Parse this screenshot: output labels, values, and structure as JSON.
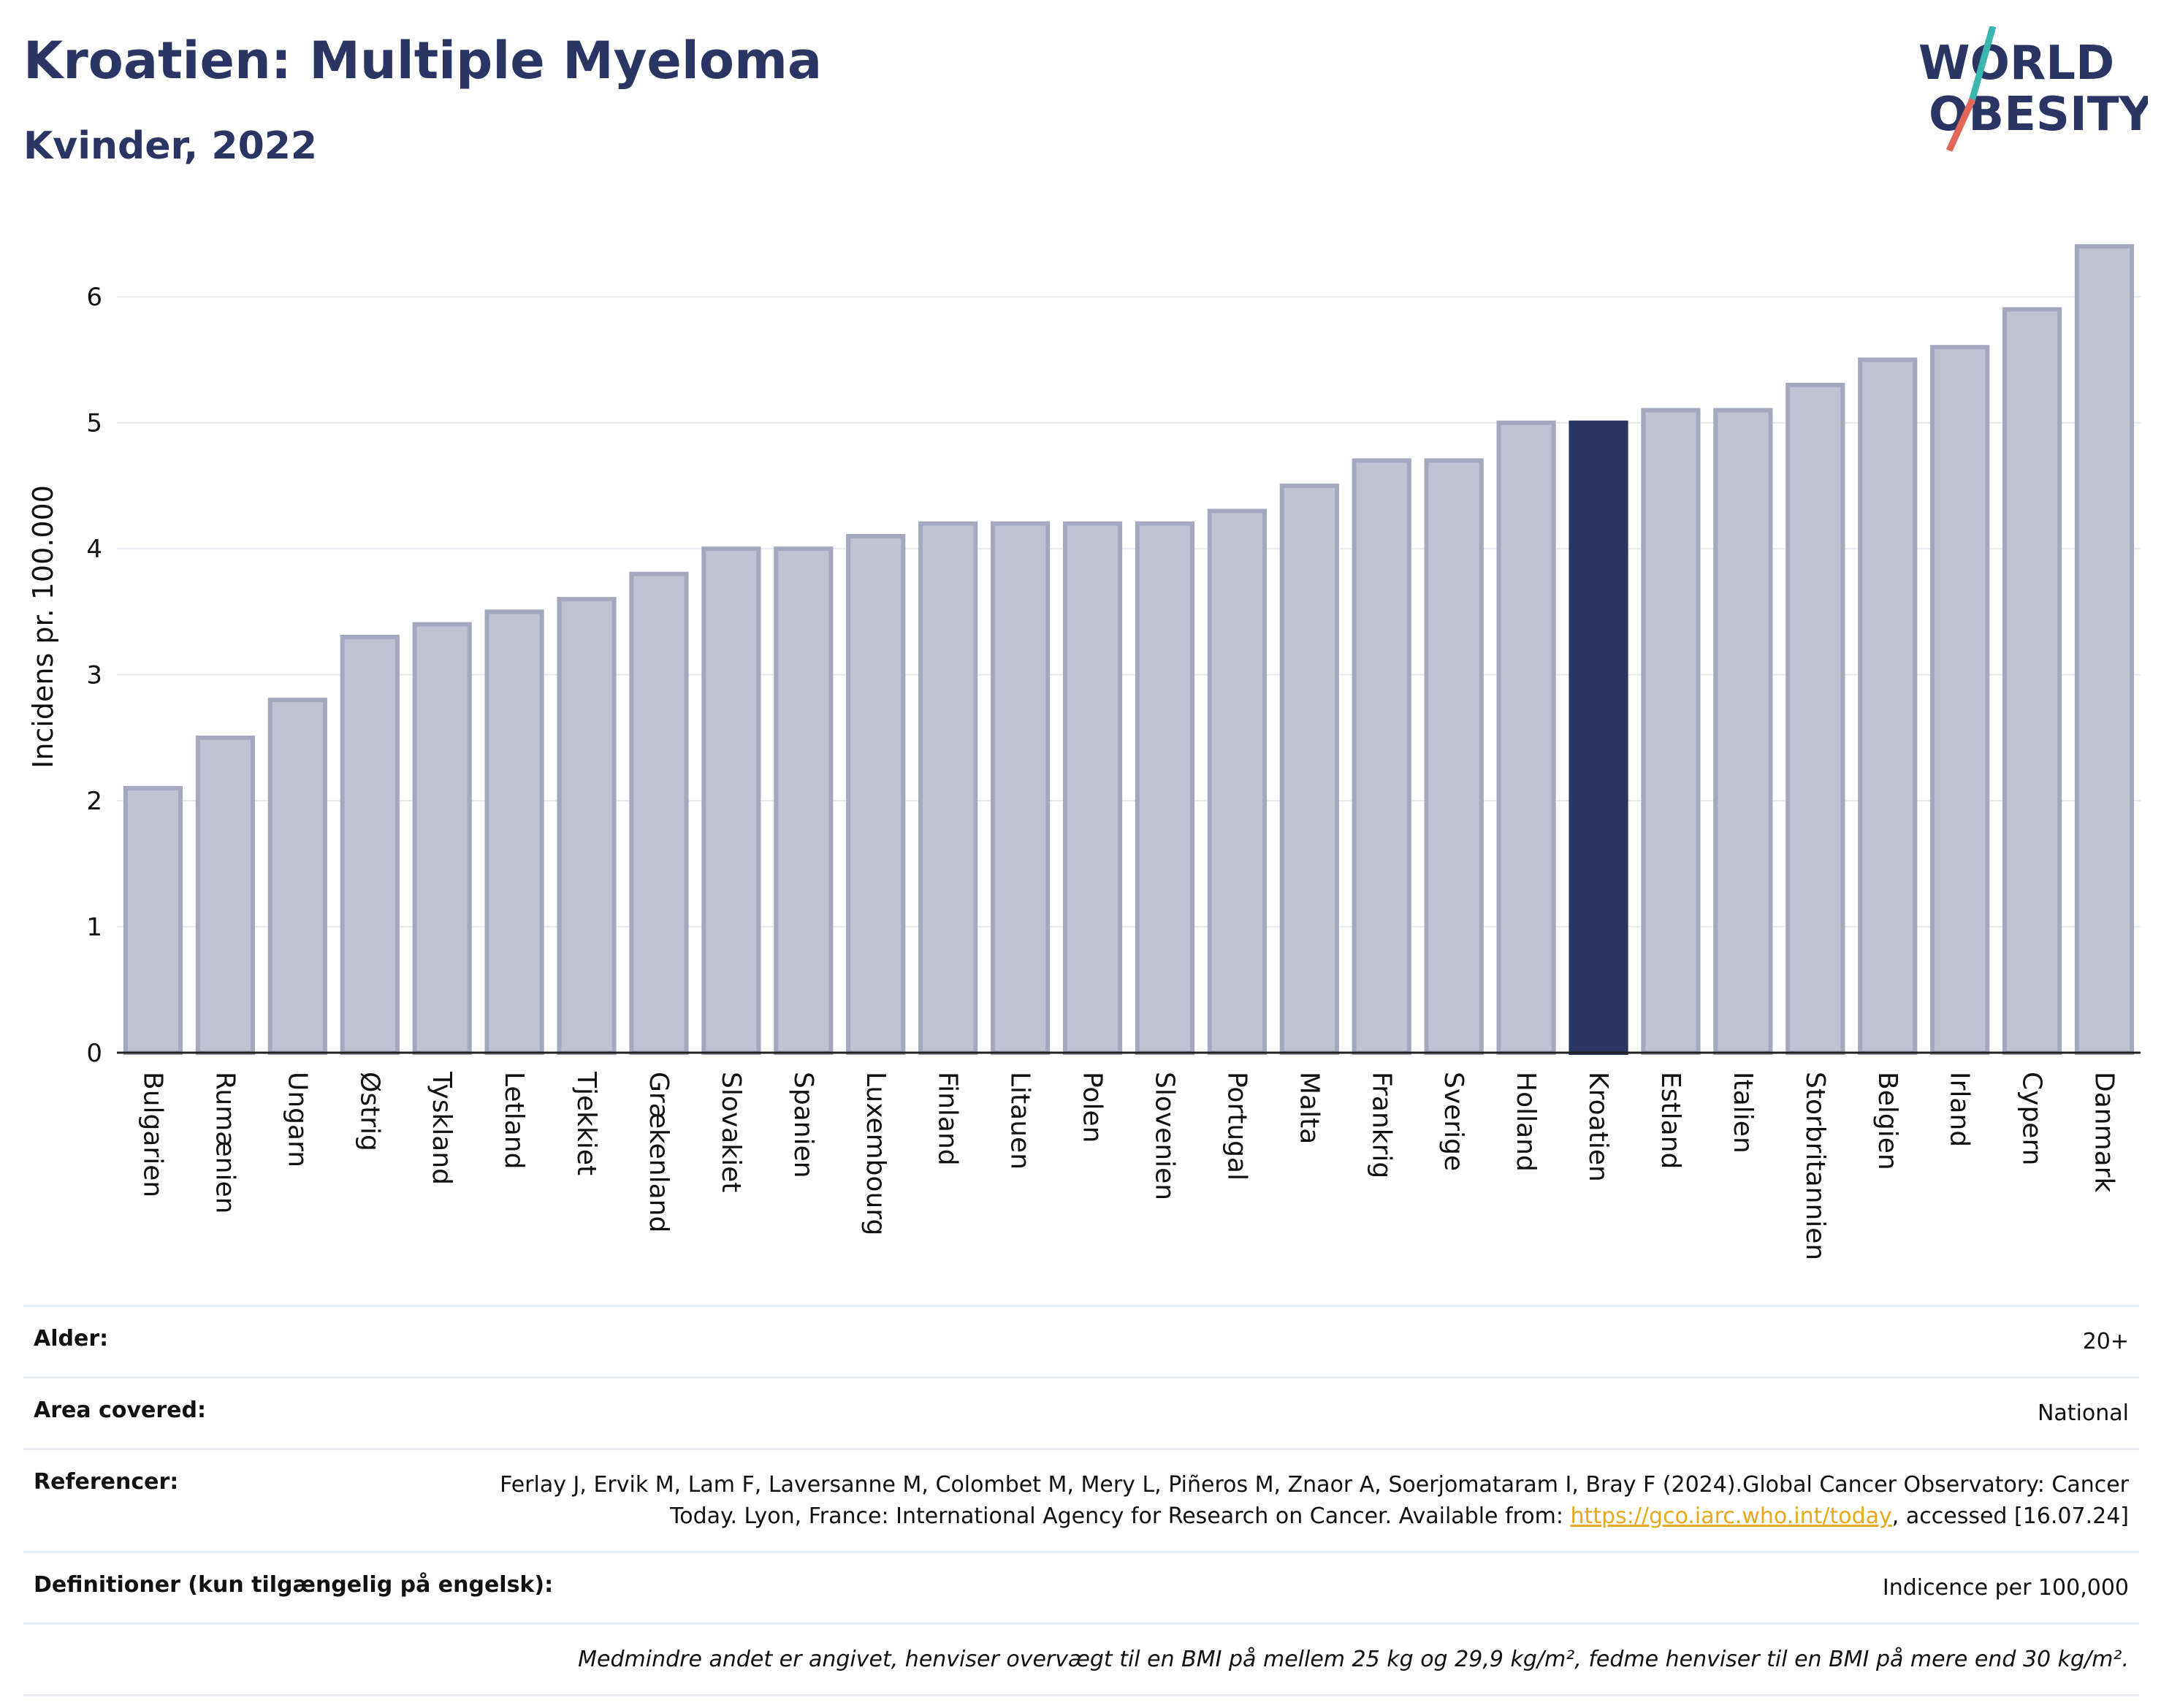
{
  "header": {
    "title": "Kroatien: Multiple Myeloma",
    "subtitle": "Kvinder, 2022"
  },
  "logo": {
    "line1": "WORLD",
    "line2": "OBESITY",
    "colors": {
      "text": "#2b3563",
      "slash_top": "#3ab5b0",
      "slash_bottom": "#e2675a"
    }
  },
  "colors": {
    "bar": "#bfc3d1",
    "bar_border": "#a3a8bf",
    "highlight": "#2b3563",
    "grid": "#e6e8ee",
    "axis": "#222222"
  },
  "chart_data": {
    "type": "bar",
    "ylabel": "Incidens pr. 100.000",
    "ylim": [
      0,
      6.5
    ],
    "yticks": [
      0,
      1,
      2,
      3,
      4,
      5,
      6
    ],
    "grid": true,
    "highlight": "Kroatien",
    "categories": [
      "Bulgarien",
      "Rumænien",
      "Ungarn",
      "Østrig",
      "Tyskland",
      "Letland",
      "Tjekkiet",
      "Grækenland",
      "Slovakiet",
      "Spanien",
      "Luxembourg",
      "Finland",
      "Litauen",
      "Polen",
      "Slovenien",
      "Portugal",
      "Malta",
      "Frankrig",
      "Sverige",
      "Holland",
      "Kroatien",
      "Estland",
      "Italien",
      "Storbritannien",
      "Belgien",
      "Irland",
      "Cypern",
      "Danmark"
    ],
    "values": [
      2.1,
      2.5,
      2.8,
      3.3,
      3.4,
      3.5,
      3.6,
      3.8,
      4.0,
      4.0,
      4.1,
      4.2,
      4.2,
      4.2,
      4.2,
      4.3,
      4.5,
      4.7,
      4.7,
      5.0,
      5.0,
      5.1,
      5.1,
      5.3,
      5.5,
      5.6,
      5.9,
      6.4
    ]
  },
  "info": {
    "age_label": "Alder:",
    "age_value": "20+",
    "area_label": "Area covered:",
    "area_value": "National",
    "ref_label": "Referencer:",
    "ref_text_1": "Ferlay J, Ervik M, Lam F, Laversanne M, Colombet M, Mery L, Piñeros M, Znaor A, Soerjomataram I, Bray F (2024).Global Cancer Observatory: Cancer Today. Lyon, France: International Agency for Research on Cancer. Available from: ",
    "ref_link": "https://gco.iarc.who.int/today",
    "ref_text_2": ", accessed [16.07.24]",
    "def_label": "Definitioner (kun tilgængelig på engelsk):",
    "def_value": "Indicence per 100,000",
    "note": "Medmindre andet er angivet, henviser overvægt til en BMI på mellem 25 kg og 29,9 kg/m², fedme henviser til en BMI på mere end 30 kg/m²."
  }
}
